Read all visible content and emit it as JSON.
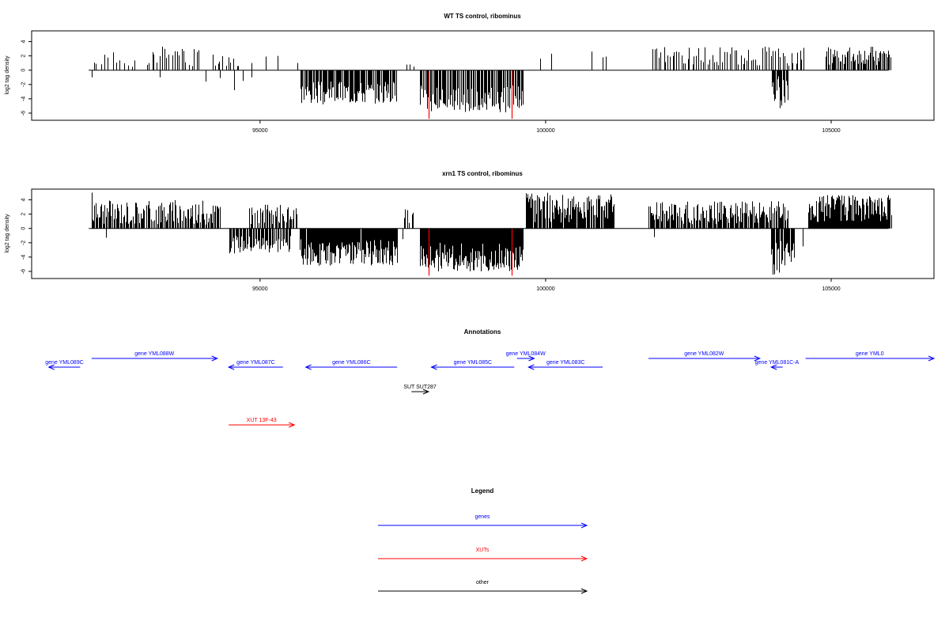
{
  "chart_data": [
    {
      "type": "bar",
      "title": "WT TS control, ribominus",
      "ylabel": "log2 tag density",
      "xlim": [
        91000,
        106800
      ],
      "ylim": [
        -7,
        5.5
      ],
      "xticks": [
        95000,
        100000,
        105000
      ],
      "xtick_labels": [
        "95000",
        "100000",
        "105000"
      ],
      "yticks": [
        4,
        2,
        0,
        -2,
        -4,
        -6
      ],
      "ytick_labels": [
        "4",
        "2",
        "0",
        "-2",
        "-4",
        "-6"
      ],
      "baseline_range": [
        92000,
        106000
      ],
      "colors": {
        "default": "#000000",
        "highlight": "#ff0000"
      },
      "highlight_x": [
        97950,
        99400
      ],
      "highlight_values": [
        -6.8,
        -6.8
      ],
      "segments": [
        {
          "range": [
            92050,
            92850
          ],
          "n": 12,
          "min": 0.4,
          "max": 2.6,
          "seed": 11
        },
        {
          "range": [
            93000,
            93950
          ],
          "n": 22,
          "min": 0.5,
          "max": 3.3,
          "seed": 12
        },
        {
          "range": [
            94150,
            94650
          ],
          "n": 11,
          "min": 0.4,
          "max": 2.4,
          "seed": 13
        },
        {
          "range": [
            95700,
            97400
          ],
          "n": 110,
          "min": -4.8,
          "max": -1.6,
          "seed": 14
        },
        {
          "range": [
            97550,
            97700
          ],
          "n": 4,
          "min": 0.5,
          "max": 1.1,
          "seed": 15
        },
        {
          "range": [
            97800,
            99600
          ],
          "n": 130,
          "min": -5.9,
          "max": -2.0,
          "seed": 16
        },
        {
          "range": [
            101200,
            102000
          ],
          "n": 0,
          "min": 0,
          "max": 0,
          "seed": 17
        },
        {
          "range": [
            101850,
            104550
          ],
          "n": 70,
          "min": 0.6,
          "max": 3.3,
          "seed": 18
        },
        {
          "range": [
            103950,
            104250
          ],
          "n": 18,
          "min": -5.3,
          "max": -0.8,
          "seed": 19
        },
        {
          "range": [
            104900,
            106050
          ],
          "n": 60,
          "min": 0.7,
          "max": 3.3,
          "seed": 20
        }
      ],
      "points": [
        {
          "x": 92050,
          "y": -1.0
        },
        {
          "x": 93250,
          "y": -1.0
        },
        {
          "x": 94050,
          "y": -1.6
        },
        {
          "x": 94300,
          "y": -1.1
        },
        {
          "x": 94550,
          "y": -2.8
        },
        {
          "x": 94700,
          "y": -1.5
        },
        {
          "x": 94850,
          "y": -1.0
        },
        {
          "x": 94850,
          "y": 1.0
        },
        {
          "x": 95100,
          "y": 1.9
        },
        {
          "x": 95300,
          "y": 2.0
        },
        {
          "x": 95650,
          "y": 1.0
        },
        {
          "x": 97620,
          "y": 0.8
        },
        {
          "x": 99200,
          "y": -1.5
        },
        {
          "x": 99250,
          "y": -4.5
        },
        {
          "x": 99600,
          "y": -2.0
        },
        {
          "x": 99900,
          "y": 1.6
        },
        {
          "x": 100100,
          "y": 2.3
        },
        {
          "x": 100800,
          "y": 2.6
        },
        {
          "x": 101000,
          "y": 1.8
        },
        {
          "x": 101050,
          "y": 1.9
        }
      ]
    },
    {
      "type": "bar",
      "title": "xrn1 TS control, ribominus",
      "ylabel": "log2 tag density",
      "xlim": [
        91000,
        106800
      ],
      "ylim": [
        -7,
        5.5
      ],
      "xticks": [
        95000,
        100000,
        105000
      ],
      "xtick_labels": [
        "95000",
        "100000",
        "105000"
      ],
      "yticks": [
        4,
        2,
        0,
        -2,
        -4,
        -6
      ],
      "ytick_labels": [
        "4",
        "2",
        "0",
        "-2",
        "-4",
        "-6"
      ],
      "baseline_range": [
        92000,
        106000
      ],
      "colors": {
        "default": "#000000",
        "highlight": "#ff0000"
      },
      "highlight_x": [
        97950,
        99400
      ],
      "highlight_values": [
        -6.6,
        -6.6
      ],
      "segments": [
        {
          "range": [
            92050,
            94300
          ],
          "n": 120,
          "min": 0.5,
          "max": 4.0,
          "seed": 31
        },
        {
          "range": [
            94450,
            95550
          ],
          "n": 60,
          "min": -3.5,
          "max": -1.0,
          "seed": 32
        },
        {
          "range": [
            94800,
            95650
          ],
          "n": 40,
          "min": 0.5,
          "max": 3.4,
          "seed": 33
        },
        {
          "range": [
            95700,
            97400
          ],
          "n": 160,
          "min": -5.2,
          "max": -1.5,
          "seed": 34
        },
        {
          "range": [
            97500,
            97700
          ],
          "n": 6,
          "min": 0.6,
          "max": 2.8,
          "seed": 35
        },
        {
          "range": [
            97800,
            99600
          ],
          "n": 200,
          "min": -6.0,
          "max": -2.0,
          "seed": 36
        },
        {
          "range": [
            99650,
            101200
          ],
          "n": 110,
          "min": 0.8,
          "max": 5.0,
          "seed": 37
        },
        {
          "range": [
            101800,
            104250
          ],
          "n": 150,
          "min": 0.6,
          "max": 3.8,
          "seed": 38
        },
        {
          "range": [
            103950,
            104350
          ],
          "n": 35,
          "min": -6.5,
          "max": -1.5,
          "seed": 39
        },
        {
          "range": [
            104600,
            106050
          ],
          "n": 140,
          "min": 0.8,
          "max": 4.7,
          "seed": 40
        }
      ],
      "points": [
        {
          "x": 92050,
          "y": 5.0
        },
        {
          "x": 92300,
          "y": -1.3
        },
        {
          "x": 97500,
          "y": -1.5
        },
        {
          "x": 101900,
          "y": -1.2
        },
        {
          "x": 104500,
          "y": -2.5
        },
        {
          "x": 104100,
          "y": 1.5
        }
      ]
    }
  ],
  "annotations": {
    "title": "Annotations",
    "xlim": [
      91000,
      106800
    ],
    "features": [
      {
        "label": "gene YML089C",
        "start": 91300,
        "end": 91850,
        "dir": "-",
        "color": "blue",
        "lane": 2
      },
      {
        "label": "gene YML088W",
        "start": 92050,
        "end": 94250,
        "dir": "+",
        "color": "blue",
        "lane": 1
      },
      {
        "label": "gene YML087C",
        "start": 94450,
        "end": 95400,
        "dir": "-",
        "color": "blue",
        "lane": 2
      },
      {
        "label": "gene YML086C",
        "start": 95800,
        "end": 97400,
        "dir": "-",
        "color": "blue",
        "lane": 2
      },
      {
        "label": "gene YML085C",
        "start": 98000,
        "end": 99450,
        "dir": "-",
        "color": "blue",
        "lane": 2
      },
      {
        "label": "gene YML084W",
        "start": 99500,
        "end": 99800,
        "dir": "+",
        "color": "blue",
        "lane": 1
      },
      {
        "label": "gene YML083C",
        "start": 99700,
        "end": 101000,
        "dir": "-",
        "color": "blue",
        "lane": 2
      },
      {
        "label": "gene YML082W",
        "start": 101800,
        "end": 103750,
        "dir": "+",
        "color": "blue",
        "lane": 1
      },
      {
        "label": "gene YML081C-A",
        "start": 103950,
        "end": 104150,
        "dir": "-",
        "color": "blue",
        "lane": 2
      },
      {
        "label": "gene YML0",
        "start": 104550,
        "end": 106800,
        "dir": "+",
        "color": "blue",
        "lane": 1
      },
      {
        "label": "SUT SUT287",
        "start": 97650,
        "end": 97950,
        "dir": "+",
        "color": "black",
        "lane": 3
      },
      {
        "label": "XUT 13F-43",
        "start": 94450,
        "end": 95600,
        "dir": "+",
        "color": "red",
        "lane": 4
      }
    ]
  },
  "legend": {
    "title": "Legend",
    "entries": [
      {
        "label": "genes",
        "color": "#0000ff"
      },
      {
        "label": "XUTs",
        "color": "#ff0000"
      },
      {
        "label": "other",
        "color": "#000000"
      }
    ]
  }
}
